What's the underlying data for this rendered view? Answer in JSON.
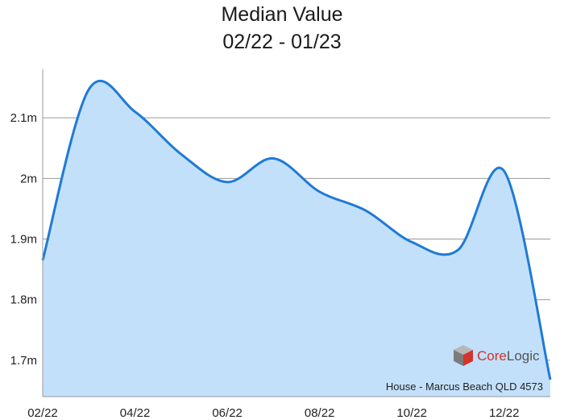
{
  "chart_data": {
    "type": "area",
    "title": "Median Value",
    "subtitle": "02/22 - 01/23",
    "xlabel": "",
    "ylabel": "",
    "x": [
      "02/22",
      "03/22",
      "04/22",
      "05/22",
      "06/22",
      "07/22",
      "08/22",
      "09/22",
      "10/22",
      "11/22",
      "12/22",
      "01/23"
    ],
    "x_tick_labels": [
      "02/22",
      "04/22",
      "06/22",
      "08/22",
      "10/22",
      "12/22"
    ],
    "values": [
      1.865,
      2.147,
      2.11,
      2.04,
      1.994,
      2.033,
      1.978,
      1.947,
      1.895,
      1.882,
      2.012,
      1.668
    ],
    "y_ticks": [
      1.7,
      1.8,
      1.9,
      2.0,
      2.1
    ],
    "y_tick_labels": [
      "1.7m",
      "1.8m",
      "1.9m",
      "2m",
      "2.1m"
    ],
    "ylim": [
      1.64,
      2.18
    ],
    "grid": "horizontal",
    "colors": {
      "line": "#1f7ad6",
      "fill": "#c3e0fb",
      "grid": "#9a9a9a"
    }
  },
  "caption": "House - Marcus Beach QLD 4573",
  "logo": {
    "brand_core": "Core",
    "brand_logic": "Logic",
    "core_color": "#d2342b",
    "logic_color": "#555555"
  }
}
